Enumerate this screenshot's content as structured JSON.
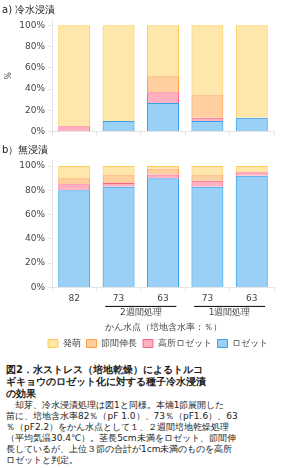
{
  "chart_data": [
    {
      "type": "bar",
      "title": "a) 冷水浸漬",
      "y_label": "％",
      "categories": [
        "82",
        "73",
        "63",
        "73",
        "63"
      ],
      "stacked": true,
      "grid": false,
      "tick_labels": "y",
      "ylim": [
        0,
        105
      ],
      "yticks": [
        {
          "value": 0,
          "label": "0%"
        },
        {
          "value": 20,
          "label": "20%"
        },
        {
          "value": 40,
          "label": "40%"
        },
        {
          "value": 60,
          "label": "60%"
        },
        {
          "value": 80,
          "label": "80%"
        },
        {
          "value": 100,
          "label": "100%"
        }
      ],
      "series": [
        {
          "name": "ロゼット",
          "values": [
            0,
            10,
            27,
            10,
            13
          ]
        },
        {
          "name": "高所ロゼット",
          "values": [
            5,
            0,
            10,
            3,
            0
          ]
        },
        {
          "name": "節間伸長",
          "values": [
            0,
            0,
            15,
            22,
            0
          ]
        },
        {
          "name": "発萌",
          "values": [
            95,
            90,
            48,
            65,
            87
          ]
        }
      ]
    },
    {
      "type": "bar",
      "title": "b）無浸漬",
      "x_label": "かん水点（培地含水率：％）",
      "categories": [
        "82",
        "73",
        "63",
        "73",
        "63"
      ],
      "annotations": [
        "2週間処理",
        "1週間処理"
      ],
      "stacked": true,
      "grid": false,
      "legend": "lower right",
      "ylim": [
        0,
        105
      ],
      "yticks": [
        {
          "value": 0,
          "label": "0%"
        },
        {
          "value": 20,
          "label": "20%"
        },
        {
          "value": 40,
          "label": "40%"
        },
        {
          "value": 60,
          "label": "60%"
        },
        {
          "value": 80,
          "label": "80%"
        },
        {
          "value": 100,
          "label": "100%"
        }
      ],
      "series": [
        {
          "name": "ロゼット",
          "values": [
            80,
            83,
            90,
            83,
            92
          ]
        },
        {
          "name": "高所ロゼット",
          "values": [
            5,
            3,
            3,
            5,
            3
          ]
        },
        {
          "name": "節間伸長",
          "values": [
            5,
            7,
            5,
            5,
            0
          ]
        },
        {
          "name": "発萌",
          "values": [
            10,
            7,
            2,
            7,
            5
          ]
        }
      ]
    }
  ],
  "caption": {
    "title": [
      "図2．水ストレス（培地乾燥）によるトルコ",
      "ギキョウのロゼット化に対する種子冷水浸漬",
      "の効果"
    ],
    "body": [
      "　却芽、冷水浸漬処理は図1と同様。本煵1節展開した",
      "苗に、培地含水率82％（pF 1.0）、73％（pF1.6）、63",
      "％（pF2.2）をかん水点として１、２週間培地乾燥処理",
      "（平均気温30.4℃）。茎長5cm未満をロゼット、節間伸",
      "長しているが、上位３節の合計が1cm未満のものを高所",
      "ロゼットと判定。"
    ]
  }
}
